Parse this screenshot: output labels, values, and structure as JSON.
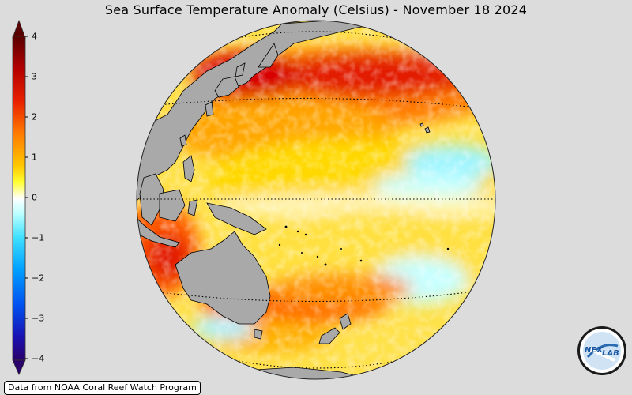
{
  "title": "Sea Surface Temperature Anomaly (Celsius) - November 18 2024",
  "colorbar": {
    "ticks": [
      "4",
      "3",
      "2",
      "1",
      "0",
      "−1",
      "−2",
      "−3",
      "−4"
    ],
    "colors": [
      "#5a0000",
      "#c80000",
      "#ff4a00",
      "#ff9900",
      "#ffd700",
      "#ffff40",
      "#ffffff",
      "#a8ffff",
      "#00c8ff",
      "#0078ff",
      "#0020d0",
      "#2a006a"
    ]
  },
  "map": {
    "ocean_anomaly_colors": {
      "warm_high": "#d80000",
      "warm": "#ff8a00",
      "mild": "#ffd400",
      "neutral": "#ffffff",
      "cool": "#7ff0ff"
    },
    "land_color": "#a9a9a9",
    "background_color": "#dcdcdc"
  },
  "credit": "Data from NOAA Coral Reef Watch Program",
  "logo": {
    "text_left": "NEX",
    "text_right": "LAB"
  }
}
